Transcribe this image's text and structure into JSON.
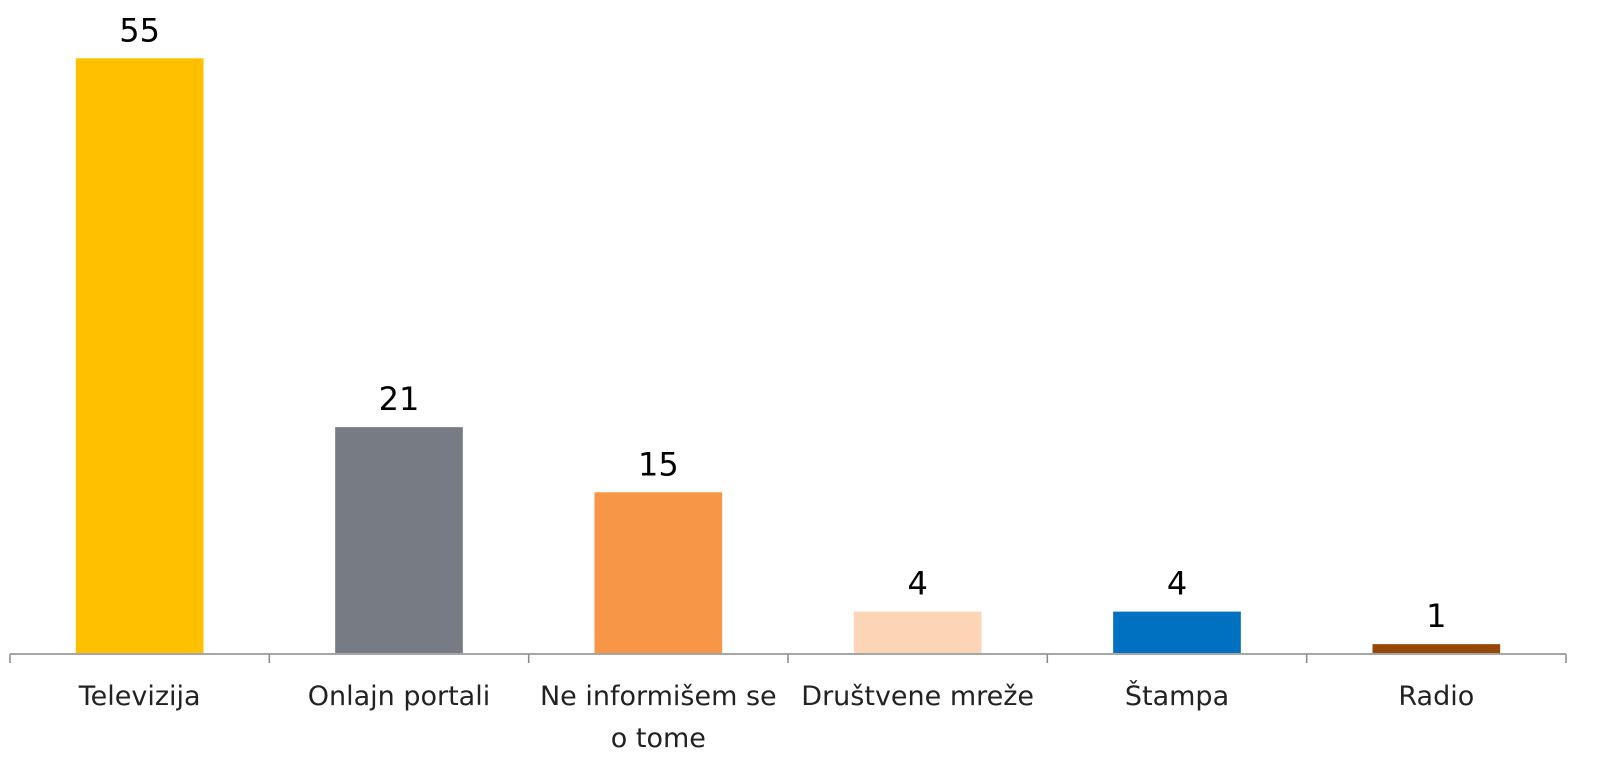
{
  "chart_data": {
    "type": "bar",
    "categories": [
      "Televizija",
      "Onlajn portali",
      "Ne informišem se o tome",
      "Društvene mreže",
      "Štampa",
      "Radio"
    ],
    "values": [
      55,
      21,
      15,
      4,
      4,
      1
    ],
    "colors": [
      "#FFC000",
      "#767B84",
      "#F79646",
      "#FBD5B5",
      "#0070C0",
      "#974706"
    ],
    "ylim": [
      0,
      60
    ]
  }
}
